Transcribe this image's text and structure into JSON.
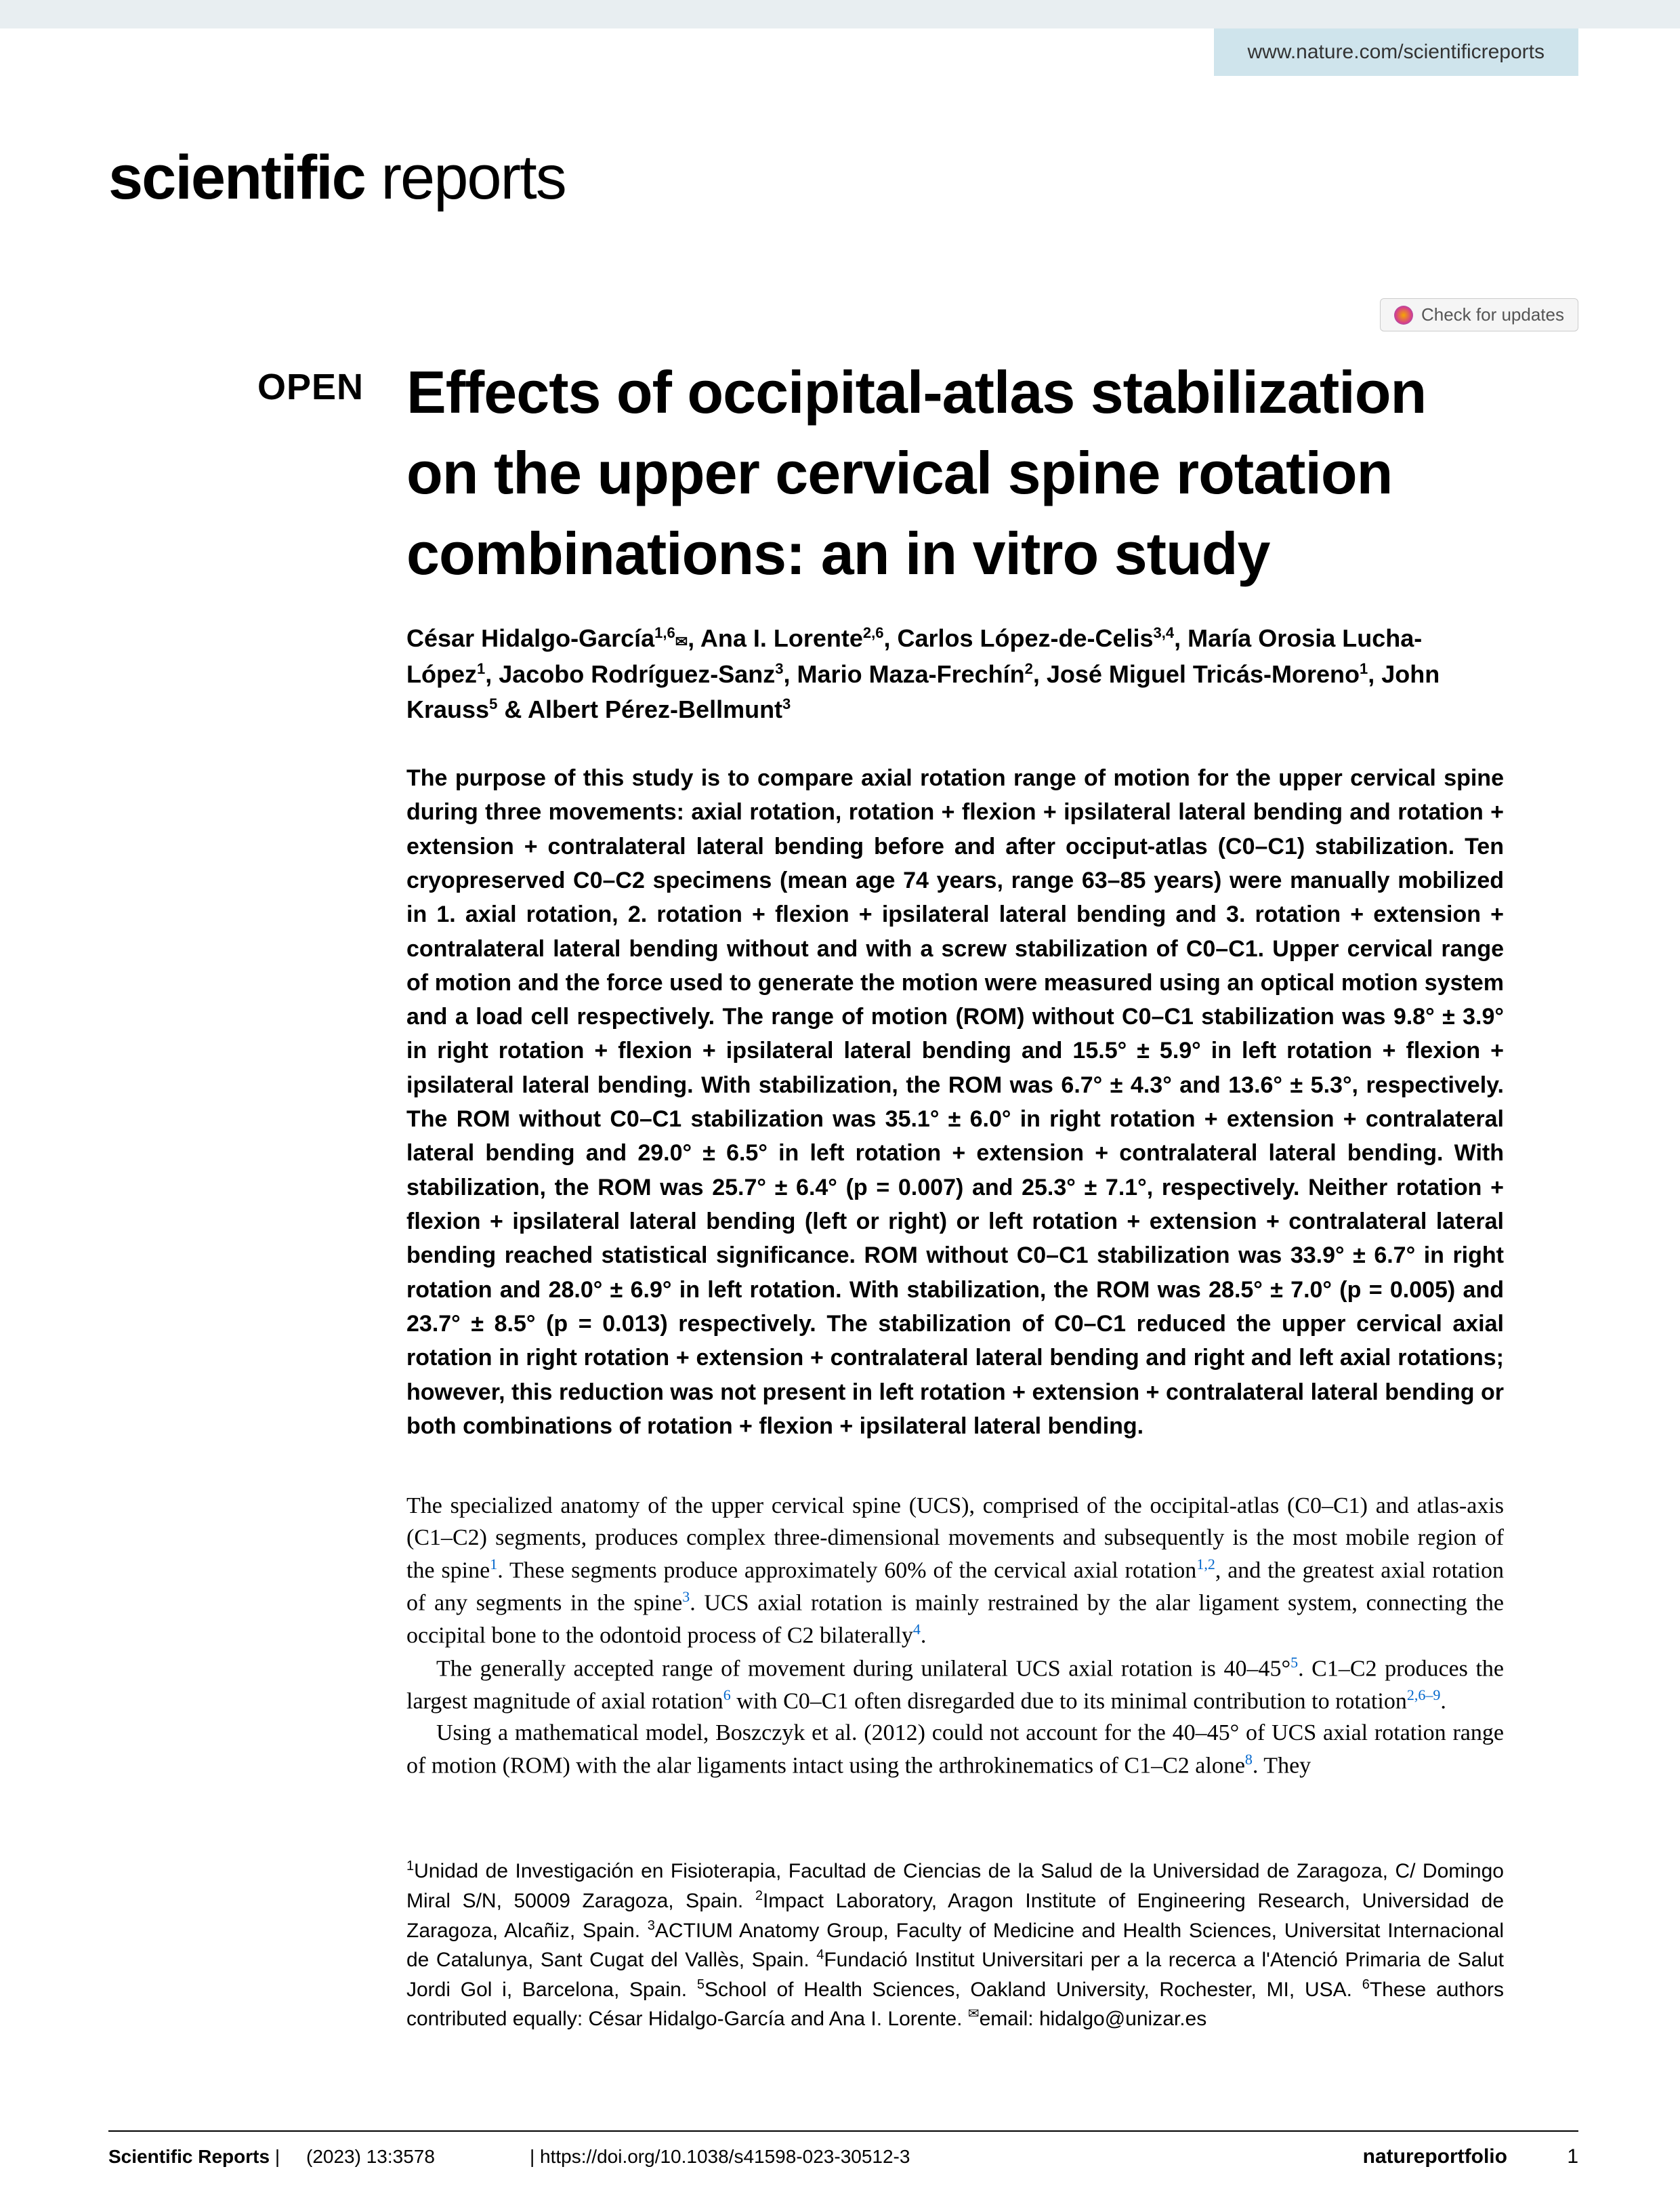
{
  "top_url": "www.nature.com/scientificreports",
  "journal_logo_bold": "scientific",
  "journal_logo_light": " reports",
  "check_updates": "Check for updates",
  "open_badge": "OPEN",
  "title": "Effects of occipital-atlas stabilization on the upper cervical spine rotation combinations: an in vitro study",
  "authors_html": "César Hidalgo-García<sup>1,6</sup><span class='envelope'>✉</span>, Ana I. Lorente<sup>2,6</sup>, Carlos López-de-Celis<sup>3,4</sup>, María Orosia Lucha-López<sup>1</sup>, Jacobo Rodríguez-Sanz<sup>3</sup>, Mario Maza-Frechín<sup>2</sup>, José Miguel Tricás-Moreno<sup>1</sup>, John Krauss<sup>5</sup> & Albert Pérez-Bellmunt<sup>3</sup>",
  "abstract": "The purpose of this study is to compare axial rotation range of motion for the upper cervical spine during three movements: axial rotation, rotation + flexion + ipsilateral lateral bending and rotation + extension + contralateral lateral bending before and after occiput-atlas (C0–C1) stabilization. Ten cryopreserved C0–C2 specimens (mean age 74 years, range 63–85 years) were manually mobilized in 1. axial rotation, 2. rotation + flexion + ipsilateral lateral bending and 3. rotation + extension + contralateral lateral bending without and with a screw stabilization of C0–C1. Upper cervical range of motion and the force used to generate the motion were measured using an optical motion system and a load cell respectively. The range of motion (ROM) without C0–C1 stabilization was 9.8° ± 3.9° in right rotation + flexion + ipsilateral lateral bending and 15.5° ± 5.9° in left rotation + flexion + ipsilateral lateral bending. With stabilization, the ROM was 6.7° ± 4.3° and 13.6° ± 5.3°, respectively. The ROM without C0–C1 stabilization was 35.1° ± 6.0° in right rotation + extension + contralateral lateral bending and 29.0° ± 6.5° in left rotation + extension + contralateral lateral bending. With stabilization, the ROM was 25.7° ± 6.4° (p = 0.007) and 25.3° ± 7.1°, respectively. Neither rotation + flexion + ipsilateral lateral bending (left or right) or left rotation + extension + contralateral lateral bending reached statistical significance. ROM without C0–C1 stabilization was 33.9° ± 6.7° in right rotation and 28.0° ± 6.9° in left rotation. With stabilization, the ROM was 28.5° ± 7.0° (p = 0.005) and 23.7° ± 8.5° (p = 0.013) respectively. The stabilization of C0–C1 reduced the upper cervical axial rotation in right rotation + extension + contralateral lateral bending and right and left axial rotations; however, this reduction was not present in left rotation + extension + contralateral lateral bending or both combinations of rotation + flexion + ipsilateral lateral bending.",
  "body_p1": "The specialized anatomy of the upper cervical spine (UCS), comprised of the occipital-atlas (C0–C1) and atlas-axis (C1–C2) segments, produces complex three-dimensional movements and subsequently is the most mobile region of the spine<sup>1</sup>. These segments produce approximately 60% of the cervical axial rotation<sup>1,2</sup>, and the greatest axial rotation of any segments in the spine<sup>3</sup>. UCS axial rotation is mainly restrained by the alar ligament system, connecting the occipital bone to the odontoid process of C2 bilaterally<sup>4</sup>.",
  "body_p2": "The generally accepted range of movement during unilateral UCS axial rotation is 40–45°<sup>5</sup>. C1–C2 produces the largest magnitude of axial rotation<sup>6</sup> with C0–C1 often disregarded due to its minimal contribution to rotation<sup>2,6–9</sup>.",
  "body_p3": "Using a mathematical model, Boszczyk et al. (2012) could not account for the 40–45° of UCS axial rotation range of motion (ROM) with the alar ligaments intact using the arthrokinematics of C1–C2 alone<sup>8</sup>. They",
  "affiliations": "<sup>1</sup>Unidad de Investigación en Fisioterapia, Facultad de Ciencias de la Salud de la Universidad de Zaragoza, C/ Domingo Miral S/N, 50009 Zaragoza, Spain. <sup>2</sup>Impact Laboratory, Aragon Institute of Engineering Research, Universidad de Zaragoza, Alcañiz, Spain. <sup>3</sup>ACTIUM Anatomy Group, Faculty of Medicine and Health Sciences, Universitat Internacional de Catalunya, Sant Cugat del Vallès, Spain. <sup>4</sup>Fundació Institut Universitari per a la recerca a l'Atenció Primaria de Salut Jordi Gol i, Barcelona, Spain. <sup>5</sup>School of Health Sciences, Oakland University, Rochester, MI, USA. <sup>6</sup>These authors contributed equally: César Hidalgo-García and Ana I. Lorente. <sup>✉</sup>email: hidalgo@unizar.es",
  "footer_journal": "Scientific Reports",
  "footer_citation": "(2023) 13:3578",
  "footer_doi": "| https://doi.org/10.1038/s41598-023-30512-3",
  "footer_publisher": "natureportfolio",
  "page_number": "1"
}
